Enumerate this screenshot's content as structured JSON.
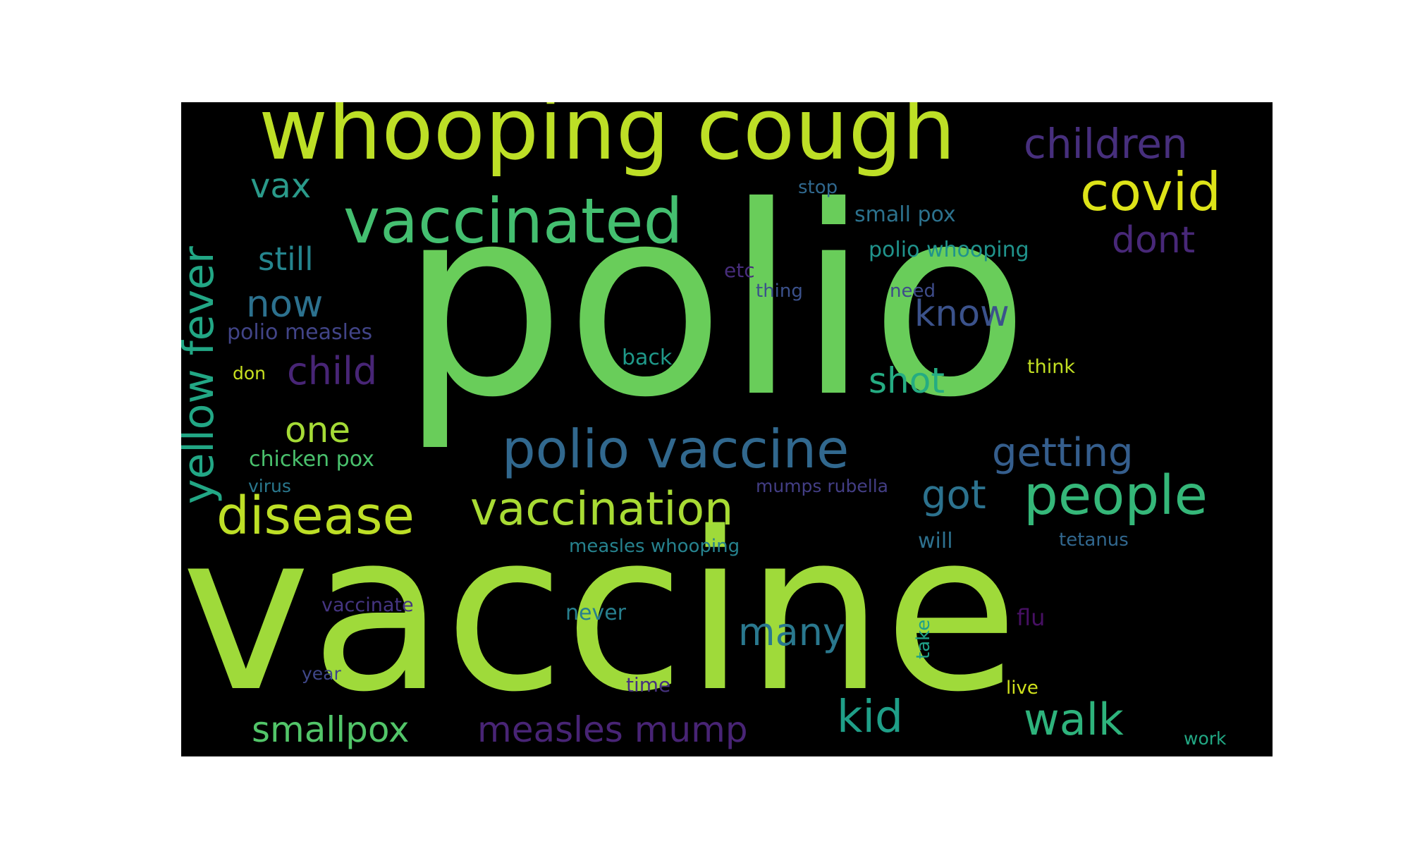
{
  "background_color": "#000000",
  "words": [
    {
      "text": "polio",
      "color": "#69cd5a"
    },
    {
      "text": "vaccine",
      "color": "#9fda3a"
    },
    {
      "text": "whooping cough",
      "color": "#bddf26"
    },
    {
      "text": "vaccinated",
      "color": "#44bf70"
    },
    {
      "text": "covid",
      "color": "#dde318"
    },
    {
      "text": "children",
      "color": "#472f7d"
    },
    {
      "text": "yellow fever",
      "color": "#22a785"
    },
    {
      "text": "polio vaccine",
      "color": "#31688e"
    },
    {
      "text": "disease",
      "color": "#bddf26"
    },
    {
      "text": "vaccination",
      "color": "#a8db34"
    },
    {
      "text": "people",
      "color": "#35b779"
    },
    {
      "text": "kid",
      "color": "#1f9f88"
    },
    {
      "text": "walk",
      "color": "#2eb37c"
    },
    {
      "text": "measles mump",
      "color": "#482475"
    },
    {
      "text": "smallpox",
      "color": "#52c569"
    },
    {
      "text": "getting",
      "color": "#355e8d"
    },
    {
      "text": "got",
      "color": "#2c728e"
    },
    {
      "text": "dont",
      "color": "#482878"
    },
    {
      "text": "know",
      "color": "#3b528b"
    },
    {
      "text": "many",
      "color": "#2a788e"
    },
    {
      "text": "shot",
      "color": "#25ac82"
    },
    {
      "text": "child",
      "color": "#482576"
    },
    {
      "text": "one",
      "color": "#a5db36"
    },
    {
      "text": "now",
      "color": "#2c718e"
    },
    {
      "text": "still",
      "color": "#25858e"
    },
    {
      "text": "vax",
      "color": "#2a9a8a"
    },
    {
      "text": "small pox",
      "color": "#2c728e"
    },
    {
      "text": "polio whooping",
      "color": "#20938c"
    },
    {
      "text": "polio measles",
      "color": "#414487"
    },
    {
      "text": "chicken pox",
      "color": "#4ac16d"
    },
    {
      "text": "back",
      "color": "#1f998a"
    },
    {
      "text": "stop",
      "color": "#30688e"
    },
    {
      "text": "etc",
      "color": "#472d7b"
    },
    {
      "text": "thing",
      "color": "#3b518b"
    },
    {
      "text": "need",
      "color": "#3e4c8a"
    },
    {
      "text": "don",
      "color": "#c8e020"
    },
    {
      "text": "think",
      "color": "#c2df23"
    },
    {
      "text": "virus",
      "color": "#2a788e"
    },
    {
      "text": "mumps rubella",
      "color": "#433e85"
    },
    {
      "text": "measles whooping",
      "color": "#26828e"
    },
    {
      "text": "will",
      "color": "#2d708e"
    },
    {
      "text": "tetanus",
      "color": "#31678e"
    },
    {
      "text": "vaccinate",
      "color": "#453581"
    },
    {
      "text": "never",
      "color": "#277f8e"
    },
    {
      "text": "flu",
      "color": "#471063"
    },
    {
      "text": "take",
      "color": "#1fa088"
    },
    {
      "text": "year",
      "color": "#3f4788"
    },
    {
      "text": "time",
      "color": "#46327e"
    },
    {
      "text": "live",
      "color": "#d0e11c"
    },
    {
      "text": "work",
      "color": "#22a884"
    }
  ]
}
